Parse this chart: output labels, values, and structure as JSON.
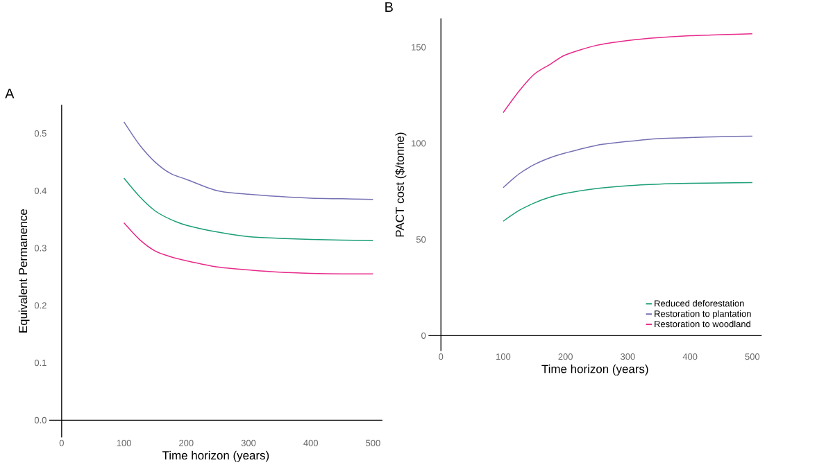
{
  "chart_data": [
    {
      "type": "line",
      "title": "A",
      "xlabel": "Time horizon (years)",
      "ylabel": "Equivalent Permanence",
      "x": [
        100,
        125,
        150,
        175,
        200,
        250,
        300,
        350,
        400,
        450,
        500
      ],
      "series": [
        {
          "color": "#7570b3",
          "values": [
            0.52,
            0.48,
            0.45,
            0.43,
            0.42,
            0.4,
            0.394,
            0.39,
            0.387,
            0.386,
            0.385
          ]
        },
        {
          "color": "#1b9e77",
          "values": [
            0.422,
            0.39,
            0.365,
            0.35,
            0.34,
            0.328,
            0.32,
            0.317,
            0.315,
            0.314,
            0.313
          ]
        },
        {
          "color": "#e7298a",
          "values": [
            0.344,
            0.315,
            0.295,
            0.285,
            0.278,
            0.267,
            0.262,
            0.258,
            0.256,
            0.255,
            0.255
          ]
        }
      ],
      "xlim": [
        -20,
        515
      ],
      "ylim": [
        -0.03,
        0.55
      ],
      "xticks": [
        0,
        100,
        200,
        300,
        400,
        500
      ],
      "yticks": [
        {
          "value": 0,
          "label": "0.0"
        },
        0.1,
        0.2,
        0.3,
        0.4,
        0.5
      ],
      "grid": false,
      "legend": false,
      "marker": "none",
      "line_style": "solid"
    },
    {
      "type": "line",
      "title": "B",
      "xlabel": "Time horizon (years)",
      "ylabel": "PACT cost ($/tonne)",
      "x": [
        100,
        125,
        150,
        175,
        200,
        250,
        300,
        350,
        400,
        450,
        500
      ],
      "series": [
        {
          "name": "Reduced deforestation",
          "color": "#1b9e77",
          "values": [
            59.5,
            65,
            69,
            72,
            74,
            76.5,
            78,
            78.8,
            79.2,
            79.4,
            79.6
          ]
        },
        {
          "name": "Restoration to plantation",
          "color": "#7570b3",
          "values": [
            77,
            84,
            89,
            92.5,
            95,
            99,
            101,
            102.5,
            103,
            103.5,
            103.7
          ]
        },
        {
          "name": "Restoration to woodland",
          "color": "#e7298a",
          "values": [
            116,
            127,
            136,
            141,
            146,
            151,
            153.5,
            155,
            156,
            156.5,
            157
          ]
        }
      ],
      "xlim": [
        -20,
        515
      ],
      "ylim": [
        -8,
        165
      ],
      "xticks": [
        0,
        100,
        200,
        300,
        400,
        500
      ],
      "yticks": [
        0,
        50,
        100,
        150
      ],
      "grid": false,
      "legend": "bottom right",
      "marker": "none",
      "line_style": "solid"
    }
  ]
}
